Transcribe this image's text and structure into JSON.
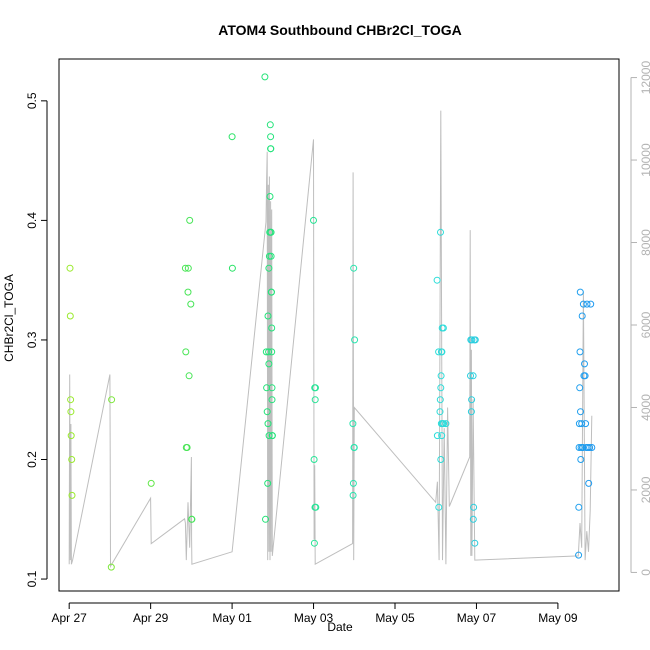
{
  "chart_data": {
    "type": "scatter",
    "title": "ATOM4 Southbound CHBr2Cl_TOGA",
    "xlabel": "Date",
    "ylabel": "CHBr2Cl_TOGA",
    "xlim": [
      "2018-04-26T18:00",
      "2018-05-10T12:00"
    ],
    "ylim": [
      0.09,
      0.535
    ],
    "y2lim": [
      -450,
      12450
    ],
    "x_ticks": [
      {
        "date": "2018-04-27",
        "label": "Apr 27"
      },
      {
        "date": "2018-04-29",
        "label": "Apr 29"
      },
      {
        "date": "2018-05-01",
        "label": "May 01"
      },
      {
        "date": "2018-05-03",
        "label": "May 03"
      },
      {
        "date": "2018-05-05",
        "label": "May 05"
      },
      {
        "date": "2018-05-07",
        "label": "May 07"
      },
      {
        "date": "2018-05-09",
        "label": "May 09"
      }
    ],
    "y_ticks": [
      "0.1",
      "0.2",
      "0.3",
      "0.4",
      "0.5"
    ],
    "y2_ticks": [
      "0",
      "2000",
      "4000",
      "6000",
      "8000",
      "10000",
      "12000"
    ],
    "grid": false,
    "colors": {
      "points_start": "#9aea2c",
      "points_mid": "#21e36a",
      "points_late": "#2ee6d6",
      "points_end": "#1f9af0",
      "altitude_line": "#bebebe",
      "right_axis": "#b3b3b3"
    },
    "series": [
      {
        "x": [
          "2018-04-27T00:30",
          "2018-04-27T00:40",
          "2018-04-27T00:50",
          "2018-04-27T01:00",
          "2018-04-27T01:10",
          "2018-04-27T01:30",
          "2018-04-27T01:40",
          "2018-04-28T00:50",
          "2018-04-28T01:00",
          "2018-04-29T00:20",
          "2018-04-29T20:30",
          "2018-04-29T20:45",
          "2018-04-29T21:00",
          "2018-04-29T21:30",
          "2018-04-29T22:00",
          "2018-04-29T22:10",
          "2018-04-29T22:40",
          "2018-04-29T23:00",
          "2018-04-29T23:40",
          "2018-04-30T00:10",
          "2018-04-30T00:20",
          "2018-05-01T00:00",
          "2018-05-01T00:10",
          "2018-05-01T19:20",
          "2018-05-01T19:40",
          "2018-05-01T20:10",
          "2018-05-01T20:20",
          "2018-05-01T20:40",
          "2018-05-01T21:10",
          "2018-05-01T21:00",
          "2018-05-01T21:10",
          "2018-05-01T21:30",
          "2018-05-01T21:40",
          "2018-05-01T21:40",
          "2018-05-01T21:50",
          "2018-05-01T22:00",
          "2018-05-01T22:10",
          "2018-05-01T22:20",
          "2018-05-01T22:30",
          "2018-05-01T22:40",
          "2018-05-01T22:40",
          "2018-05-01T22:50",
          "2018-05-01T22:50",
          "2018-05-01T23:00",
          "2018-05-01T23:00",
          "2018-05-01T23:10",
          "2018-05-01T23:10",
          "2018-05-01T23:20",
          "2018-05-01T23:20",
          "2018-05-01T23:30",
          "2018-05-01T23:30",
          "2018-05-01T23:40",
          "2018-05-01T23:40",
          "2018-05-03T00:00",
          "2018-05-03T00:20",
          "2018-05-03T00:30",
          "2018-05-03T00:40",
          "2018-05-03T00:50",
          "2018-05-03T01:00",
          "2018-05-03T01:10",
          "2018-05-03T01:20",
          "2018-05-03T23:10",
          "2018-05-03T23:20",
          "2018-05-03T23:30",
          "2018-05-03T23:40",
          "2018-05-03T23:50",
          "2018-05-04T00:00",
          "2018-05-04T00:10",
          "2018-05-06T00:50",
          "2018-05-06T01:00",
          "2018-05-06T01:40",
          "2018-05-06T01:50",
          "2018-05-06T02:30",
          "2018-05-06T02:40",
          "2018-05-06T02:50",
          "2018-05-06T03:00",
          "2018-05-06T03:00",
          "2018-05-06T03:10",
          "2018-05-06T03:20",
          "2018-05-06T03:20",
          "2018-05-06T03:30",
          "2018-05-06T03:40",
          "2018-05-06T03:50",
          "2018-05-06T04:00",
          "2018-05-06T04:30",
          "2018-05-06T04:40",
          "2018-05-06T06:00",
          "2018-05-06T20:30",
          "2018-05-06T20:40",
          "2018-05-06T21:00",
          "2018-05-06T21:10",
          "2018-05-06T21:20",
          "2018-05-06T22:00",
          "2018-05-06T22:10",
          "2018-05-06T22:20",
          "2018-05-06T22:40",
          "2018-05-06T23:00",
          "2018-05-06T23:20",
          "2018-05-09T12:10",
          "2018-05-09T12:20",
          "2018-05-09T12:30",
          "2018-05-09T12:40",
          "2018-05-09T12:50",
          "2018-05-09T13:00",
          "2018-05-09T13:10",
          "2018-05-09T13:20",
          "2018-05-09T13:30",
          "2018-05-09T13:40",
          "2018-05-09T14:00",
          "2018-05-09T14:20",
          "2018-05-09T14:30",
          "2018-05-09T14:40",
          "2018-05-09T15:00",
          "2018-05-09T15:20",
          "2018-05-09T15:40",
          "2018-05-09T16:00",
          "2018-05-09T16:20",
          "2018-05-09T16:40",
          "2018-05-09T17:10",
          "2018-05-09T17:40",
          "2018-05-09T18:10",
          "2018-05-09T18:40",
          "2018-05-09T19:20",
          "2018-05-09T20:00"
        ],
        "values": [
          0.36,
          0.32,
          0.25,
          0.24,
          0.22,
          0.2,
          0.17,
          0.11,
          0.25,
          0.18,
          0.36,
          0.29,
          0.21,
          0.21,
          0.34,
          0.36,
          0.27,
          0.4,
          0.33,
          0.15,
          0.15,
          0.47,
          0.36,
          0.52,
          0.15,
          0.29,
          0.26,
          0.24,
          0.23,
          0.18,
          0.32,
          0.29,
          0.28,
          0.36,
          0.22,
          0.37,
          0.39,
          0.42,
          0.48,
          0.47,
          0.46,
          0.46,
          0.39,
          0.39,
          0.37,
          0.34,
          0.34,
          0.31,
          0.29,
          0.26,
          0.25,
          0.22,
          0.22,
          0.4,
          0.2,
          0.13,
          0.26,
          0.16,
          0.25,
          0.26,
          0.16,
          0.23,
          0.17,
          0.18,
          0.36,
          0.21,
          0.21,
          0.3,
          0.35,
          0.22,
          0.29,
          0.16,
          0.24,
          0.25,
          0.39,
          0.26,
          0.2,
          0.27,
          0.29,
          0.23,
          0.22,
          0.29,
          0.31,
          0.23,
          0.31,
          0.23,
          0.23,
          0.27,
          0.3,
          0.24,
          0.25,
          0.3,
          0.27,
          0.15,
          0.16,
          0.3,
          0.13,
          0.3,
          0.12,
          0.16,
          0.21,
          0.23,
          0.26,
          0.29,
          0.34,
          0.24,
          0.2,
          0.21,
          0.23,
          0.32,
          0.21,
          0.21,
          0.33,
          0.27,
          0.28,
          0.27,
          0.23,
          0.21,
          0.33,
          0.21,
          0.18,
          0.21,
          0.33,
          0.21
        ]
      },
      {
        "name": "",
        "axis": "right",
        "x": [
          "2018-04-27T00:00",
          "2018-04-27T00:20",
          "2018-04-27T00:40",
          "2018-04-27T01:00",
          "2018-04-27T01:20",
          "2018-04-27T02:00",
          "2018-04-28T00:00",
          "2018-04-28T00:10",
          "2018-04-28T00:20",
          "2018-04-29T00:00",
          "2018-04-29T00:20",
          "2018-04-29T20:00",
          "2018-04-29T20:30",
          "2018-04-29T21:00",
          "2018-04-29T22:00",
          "2018-04-29T23:00",
          "2018-04-30T00:00",
          "2018-04-30T00:10",
          "2018-04-30T00:20",
          "2018-05-01T00:00",
          "2018-05-01T20:00",
          "2018-05-01T20:20",
          "2018-05-01T20:40",
          "2018-05-01T21:00",
          "2018-05-01T21:20",
          "2018-05-01T21:40",
          "2018-05-01T22:00",
          "2018-05-01T22:20",
          "2018-05-01T22:40",
          "2018-05-01T23:00",
          "2018-05-01T23:20",
          "2018-05-01T23:40",
          "2018-05-03T00:00",
          "2018-05-03T00:20",
          "2018-05-03T00:40",
          "2018-05-03T01:00",
          "2018-05-03T23:00",
          "2018-05-03T23:20",
          "2018-05-03T23:40",
          "2018-05-04T00:00",
          "2018-05-06T00:00",
          "2018-05-06T01:00",
          "2018-05-06T02:00",
          "2018-05-06T03:00",
          "2018-05-06T04:00",
          "2018-05-06T05:00",
          "2018-05-06T06:00",
          "2018-05-06T07:00",
          "2018-05-06T08:00",
          "2018-05-06T20:00",
          "2018-05-06T20:20",
          "2018-05-06T20:40",
          "2018-05-06T21:00",
          "2018-05-06T21:20",
          "2018-05-06T22:00",
          "2018-05-06T23:00",
          "2018-05-09T12:00",
          "2018-05-09T13:00",
          "2018-05-09T14:00",
          "2018-05-09T15:00",
          "2018-05-09T16:00",
          "2018-05-09T17:00",
          "2018-05-09T18:00",
          "2018-05-09T19:00",
          "2018-05-09T20:00"
        ],
        "values": [
          200,
          4800,
          300,
          3600,
          200,
          300,
          4800,
          2900,
          150,
          1800,
          700,
          1300,
          1200,
          300,
          1700,
          600,
          2800,
          800,
          200,
          500,
          8500,
          9500,
          10200,
          300,
          9400,
          500,
          9600,
          300,
          9000,
          500,
          8800,
          400,
          10500,
          800,
          2600,
          200,
          700,
          9700,
          300,
          4000,
          1700,
          2200,
          300,
          11200,
          300,
          3500,
          200,
          4000,
          1600,
          2800,
          8300,
          400,
          5400,
          400,
          4200,
          300,
          400,
          1200,
          600,
          6800,
          300,
          1000,
          500,
          1500,
          3800
        ]
      }
    ]
  }
}
